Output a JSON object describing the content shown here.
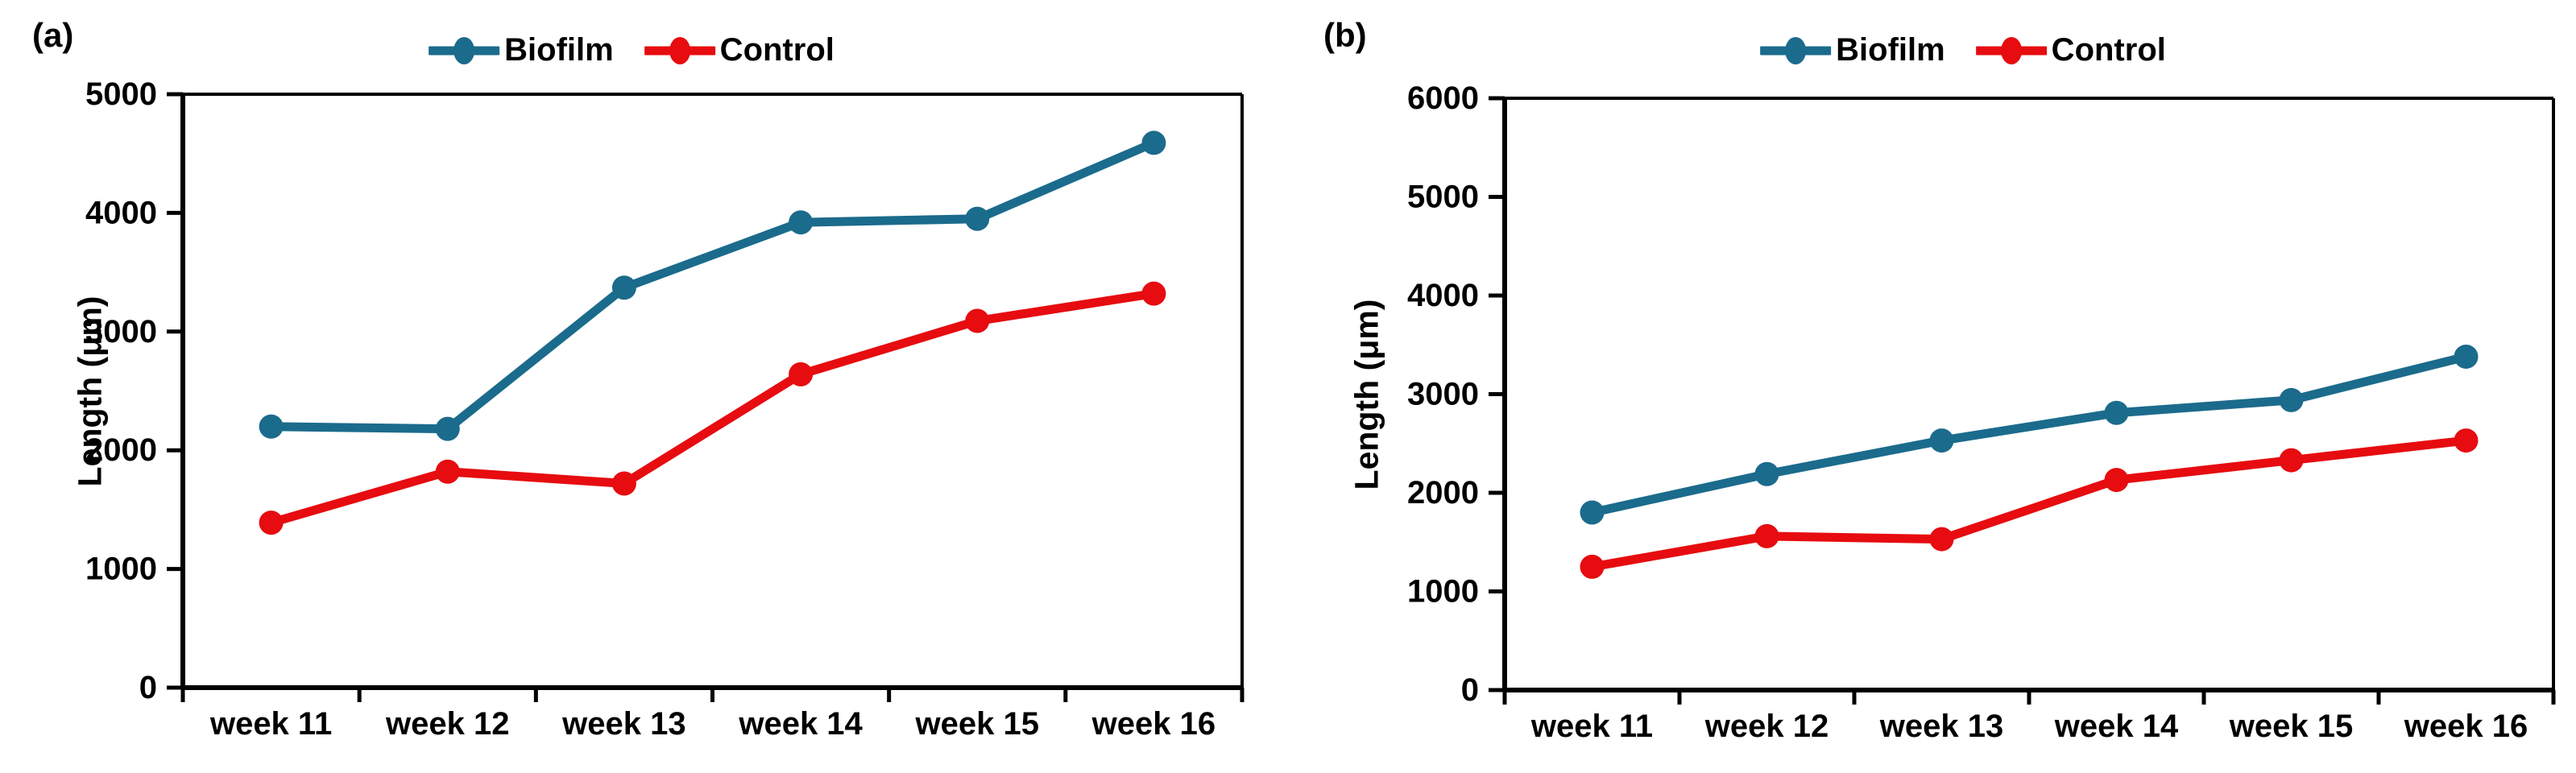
{
  "figure": {
    "background": "#ffffff",
    "axis_color": "#000000",
    "text_color": "#000000"
  },
  "chart_data": [
    {
      "type": "line",
      "panel_label": "(a)",
      "title": "",
      "xlabel": "",
      "ylabel": "Length (μm)",
      "categories": [
        "week 11",
        "week 12",
        "week 13",
        "week 14",
        "week 15",
        "week 16"
      ],
      "series": [
        {
          "name": "Biofilm",
          "color": "#1b6b8c",
          "values": [
            2200,
            2180,
            3370,
            3920,
            3950,
            4590
          ]
        },
        {
          "name": "Control",
          "color": "#e60c10",
          "values": [
            1390,
            1820,
            1720,
            2640,
            3090,
            3320
          ]
        }
      ],
      "ylim": [
        0,
        5000
      ],
      "ytick_step": 1000,
      "ytick_labels": [
        "0",
        "1000",
        "2000",
        "3000",
        "4000",
        "5000"
      ],
      "grid": false,
      "legend_position": "top"
    },
    {
      "type": "line",
      "panel_label": "(b)",
      "title": "",
      "xlabel": "",
      "ylabel": "Length (μm)",
      "categories": [
        "week 11",
        "week 12",
        "week 13",
        "week 14",
        "week 15",
        "week 16"
      ],
      "series": [
        {
          "name": "Biofilm",
          "color": "#1b6b8c",
          "values": [
            1800,
            2190,
            2530,
            2810,
            2940,
            3380
          ]
        },
        {
          "name": "Control",
          "color": "#e60c10",
          "values": [
            1250,
            1560,
            1530,
            2130,
            2330,
            2530
          ]
        }
      ],
      "ylim": [
        0,
        6000
      ],
      "ytick_step": 1000,
      "ytick_labels": [
        "0",
        "1000",
        "2000",
        "3000",
        "4000",
        "5000",
        "6000"
      ],
      "grid": false,
      "legend_position": "top"
    }
  ]
}
